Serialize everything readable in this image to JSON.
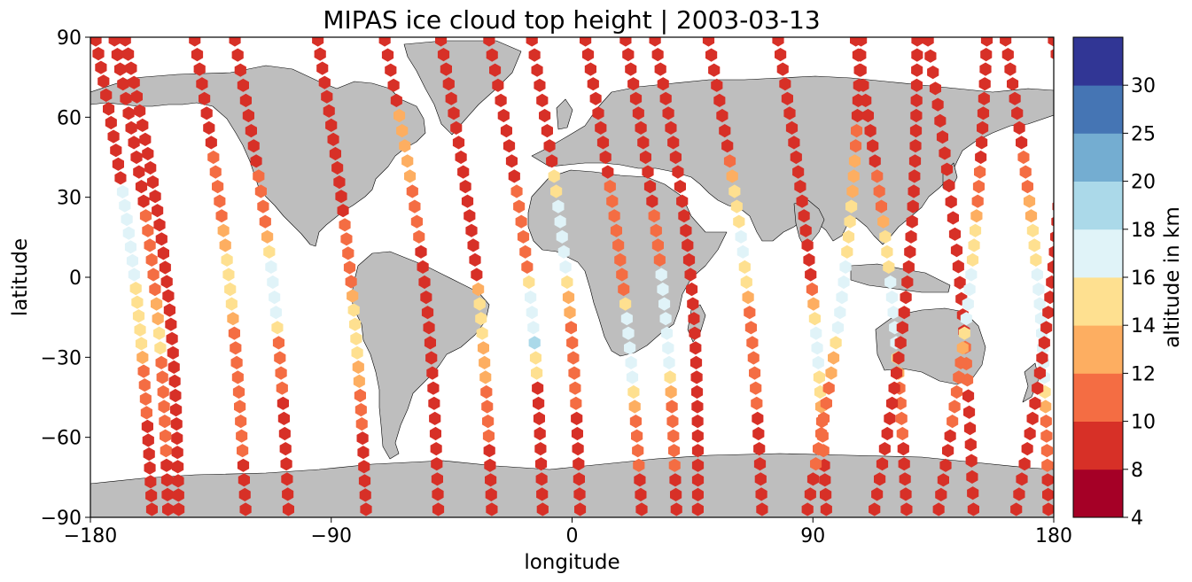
{
  "chart_data": {
    "type": "scatter",
    "title": "MIPAS ice cloud top height | 2003-03-13",
    "xlabel": "longitude",
    "ylabel": "latitude",
    "xlim": [
      -180,
      180
    ],
    "ylim": [
      -90,
      90
    ],
    "xticks": [
      -180,
      -90,
      0,
      90,
      180
    ],
    "yticks": [
      -90,
      -60,
      -30,
      0,
      30,
      60,
      90
    ],
    "xtick_labels": [
      "−180",
      "−90",
      "0",
      "90",
      "180"
    ],
    "ytick_labels": [
      "−90",
      "−60",
      "−30",
      "0",
      "30",
      "60",
      "90"
    ],
    "grid": false,
    "land_color": "#bebebe",
    "colorbar": {
      "label": "altitude in km",
      "boundaries": [
        4,
        8,
        10,
        12,
        14,
        16,
        18,
        20,
        25,
        30
      ],
      "tick_labels": [
        "4",
        "8",
        "10",
        "12",
        "14",
        "16",
        "18",
        "20",
        "25",
        "30"
      ],
      "colors": [
        "#a50026",
        "#d73027",
        "#f46d43",
        "#fdae61",
        "#fee090",
        "#e0f3f8",
        "#abd9e9",
        "#74add1",
        "#4575b4",
        "#313695"
      ]
    },
    "tracks": [
      {
        "altitudes": [
          8,
          8,
          8,
          8,
          9,
          9,
          8,
          8,
          8,
          8,
          8,
          17,
          17,
          17,
          17,
          17,
          17,
          16,
          15,
          15,
          15,
          14,
          14,
          12,
          11,
          11,
          11,
          11,
          8,
          8,
          8,
          8,
          8,
          8,
          8
        ]
      },
      {
        "altitudes": [
          8,
          8,
          8,
          8,
          8,
          8,
          8,
          9,
          9,
          8,
          8,
          8,
          11,
          11,
          11,
          11,
          11,
          11,
          12,
          12,
          14,
          14,
          11,
          11,
          11,
          11,
          11,
          11,
          11,
          8,
          8,
          8,
          8
        ]
      },
      {
        "altitudes": [
          8,
          8,
          8,
          8,
          8,
          8,
          8,
          8,
          8,
          8,
          8,
          8,
          8,
          8,
          8,
          8,
          8,
          8,
          8,
          8,
          8,
          8,
          8,
          8,
          8,
          8,
          8,
          8,
          8,
          8,
          8,
          8,
          8,
          8
        ]
      },
      {
        "altitudes": [
          8,
          8,
          8,
          8,
          8,
          8,
          8,
          9,
          11,
          11,
          11,
          11,
          11,
          13,
          13,
          15,
          15,
          15,
          15,
          13,
          11,
          11,
          11,
          11,
          11,
          11,
          11,
          11,
          11,
          8,
          8,
          8,
          8
        ]
      },
      {
        "altitudes": [
          8,
          8,
          8,
          8,
          8,
          8,
          8,
          8,
          8,
          11,
          11,
          11,
          11,
          13,
          15,
          17,
          17,
          17,
          17,
          15,
          11,
          11,
          11,
          11,
          8,
          8,
          8,
          8,
          8,
          8,
          8,
          8
        ]
      },
      {
        "altitudes": [
          8,
          8,
          8,
          8,
          8,
          8,
          8,
          8,
          8,
          8,
          8,
          8,
          8,
          11,
          11,
          11,
          11,
          11,
          13,
          15,
          15,
          15,
          15,
          13,
          13,
          11,
          11,
          11,
          9,
          8,
          8,
          8,
          8,
          8
        ]
      },
      {
        "altitudes": [
          8,
          8,
          8,
          8,
          9,
          12,
          12,
          12,
          12,
          12,
          11,
          11,
          11,
          11,
          9,
          8,
          8,
          8,
          8,
          8,
          8,
          8,
          8,
          8,
          8,
          8,
          8,
          8,
          8,
          8,
          8,
          8
        ]
      },
      {
        "altitudes": [
          8,
          8,
          8,
          8,
          8,
          8,
          8,
          8,
          8,
          8,
          8,
          8,
          8,
          8,
          8,
          8,
          8,
          13,
          15,
          15,
          15,
          13,
          13,
          13,
          11,
          11,
          11,
          11,
          8,
          8,
          8,
          8,
          8
        ]
      },
      {
        "altitudes": [
          8,
          8,
          8,
          8,
          8,
          8,
          8,
          9,
          9,
          8,
          11,
          11,
          11,
          11,
          11,
          11,
          15,
          17,
          17,
          17,
          19,
          15,
          15,
          8,
          8,
          8,
          8,
          8,
          8,
          8,
          8,
          8
        ]
      },
      {
        "altitudes": [
          8,
          8,
          8,
          8,
          8,
          8,
          8,
          8,
          8,
          15,
          15,
          17,
          17,
          17,
          17,
          16,
          15,
          13,
          13,
          11,
          11,
          11,
          11,
          11,
          11,
          8,
          8,
          8,
          8,
          8,
          8,
          8
        ]
      },
      {
        "altitudes": [
          8,
          8,
          8,
          8,
          8,
          8,
          9,
          8,
          8,
          8,
          11,
          11,
          11,
          11,
          11,
          11,
          11,
          11,
          15,
          16,
          17,
          17,
          17,
          17,
          15,
          13,
          11,
          11,
          11,
          11,
          8,
          8,
          8
        ]
      },
      {
        "altitudes": [
          8,
          8,
          8,
          8,
          8,
          8,
          8,
          8,
          8,
          8,
          8,
          8,
          11,
          11,
          11,
          11,
          16,
          16,
          17,
          17,
          17,
          17,
          17,
          15,
          13,
          11,
          11,
          11,
          11,
          11,
          8,
          8,
          8
        ]
      },
      {
        "altitudes": [
          8,
          8,
          8,
          8,
          8,
          8,
          8,
          8,
          8,
          8,
          8,
          8,
          8,
          8,
          8,
          8,
          8,
          8,
          8,
          8,
          8,
          8,
          8,
          8,
          8,
          8,
          8,
          8,
          8,
          8,
          8,
          8,
          8
        ]
      },
      {
        "altitudes": [
          8,
          8,
          8,
          8,
          8,
          8,
          8,
          8,
          11,
          13,
          15,
          15,
          15,
          17,
          16,
          15,
          15,
          13,
          11,
          11,
          11,
          11,
          11,
          11,
          11,
          8,
          8,
          8,
          8,
          8,
          8,
          8
        ]
      },
      {
        "altitudes": [
          8,
          8,
          8,
          8,
          8,
          8,
          8,
          8,
          8,
          8,
          8,
          8,
          8,
          8,
          8,
          8,
          8,
          11,
          13,
          15,
          17,
          17,
          17,
          15,
          15,
          13,
          11,
          11,
          11,
          8,
          8,
          8,
          8
        ]
      },
      {
        "altitudes": [
          8,
          8,
          8,
          8,
          8,
          9,
          11,
          11,
          13,
          13,
          13,
          15,
          15,
          15,
          15,
          16,
          17,
          17,
          17,
          17,
          15,
          13,
          13,
          11,
          11,
          11,
          11,
          11,
          11,
          8,
          8,
          8
        ]
      },
      {
        "altitudes": [
          8,
          8,
          8,
          8,
          8,
          8,
          8,
          9,
          9,
          11,
          11,
          11,
          13,
          15,
          15,
          15,
          16,
          17,
          17,
          17,
          17,
          15,
          13,
          11,
          11,
          11,
          11,
          8,
          8,
          8,
          8,
          8
        ]
      },
      {
        "altitudes": [
          8,
          8,
          8,
          8,
          8,
          8,
          8,
          8,
          8,
          8,
          8,
          8,
          8,
          8,
          8,
          8,
          8,
          8,
          8,
          8,
          8,
          8,
          8,
          8,
          8,
          8,
          8,
          8,
          8,
          8,
          8,
          8
        ]
      },
      {
        "altitudes": [
          8,
          8,
          8,
          8,
          8,
          8,
          8,
          8,
          8,
          8,
          8,
          8,
          8,
          8,
          8,
          8,
          8,
          8,
          8,
          11,
          11,
          11,
          8,
          8,
          8,
          8,
          8,
          8,
          8,
          8
        ]
      },
      {
        "altitudes": [
          8,
          8,
          8,
          8,
          8,
          8,
          8,
          9,
          9,
          11,
          11,
          11,
          13,
          15,
          15,
          15,
          17,
          17,
          17,
          17,
          15,
          13,
          11,
          11,
          11,
          11,
          11,
          8,
          8,
          8,
          8,
          8,
          8
        ]
      },
      {
        "altitudes": [
          8,
          8,
          8,
          8,
          8,
          8,
          8,
          8,
          11,
          11,
          11,
          13,
          13,
          15,
          15,
          15,
          16,
          17,
          17,
          17,
          17,
          17,
          17,
          17,
          15,
          13,
          11,
          11,
          11,
          11,
          8,
          8,
          8
        ]
      },
      {
        "altitudes": [
          8,
          8,
          8,
          8,
          8,
          8,
          8,
          8,
          8,
          8,
          8,
          8,
          8,
          8,
          8,
          8,
          8,
          8,
          8,
          8,
          8,
          8,
          8,
          8,
          8,
          8,
          8,
          8,
          8,
          8,
          8,
          8
        ]
      },
      {
        "altitudes": [
          8,
          8,
          8,
          8,
          8,
          9,
          9,
          9,
          9,
          9,
          8,
          8,
          8,
          8,
          8,
          8,
          8,
          8,
          8,
          8,
          8,
          8,
          8,
          8,
          8,
          8,
          8,
          8,
          8,
          8,
          8,
          8,
          8,
          8
        ]
      }
    ]
  }
}
